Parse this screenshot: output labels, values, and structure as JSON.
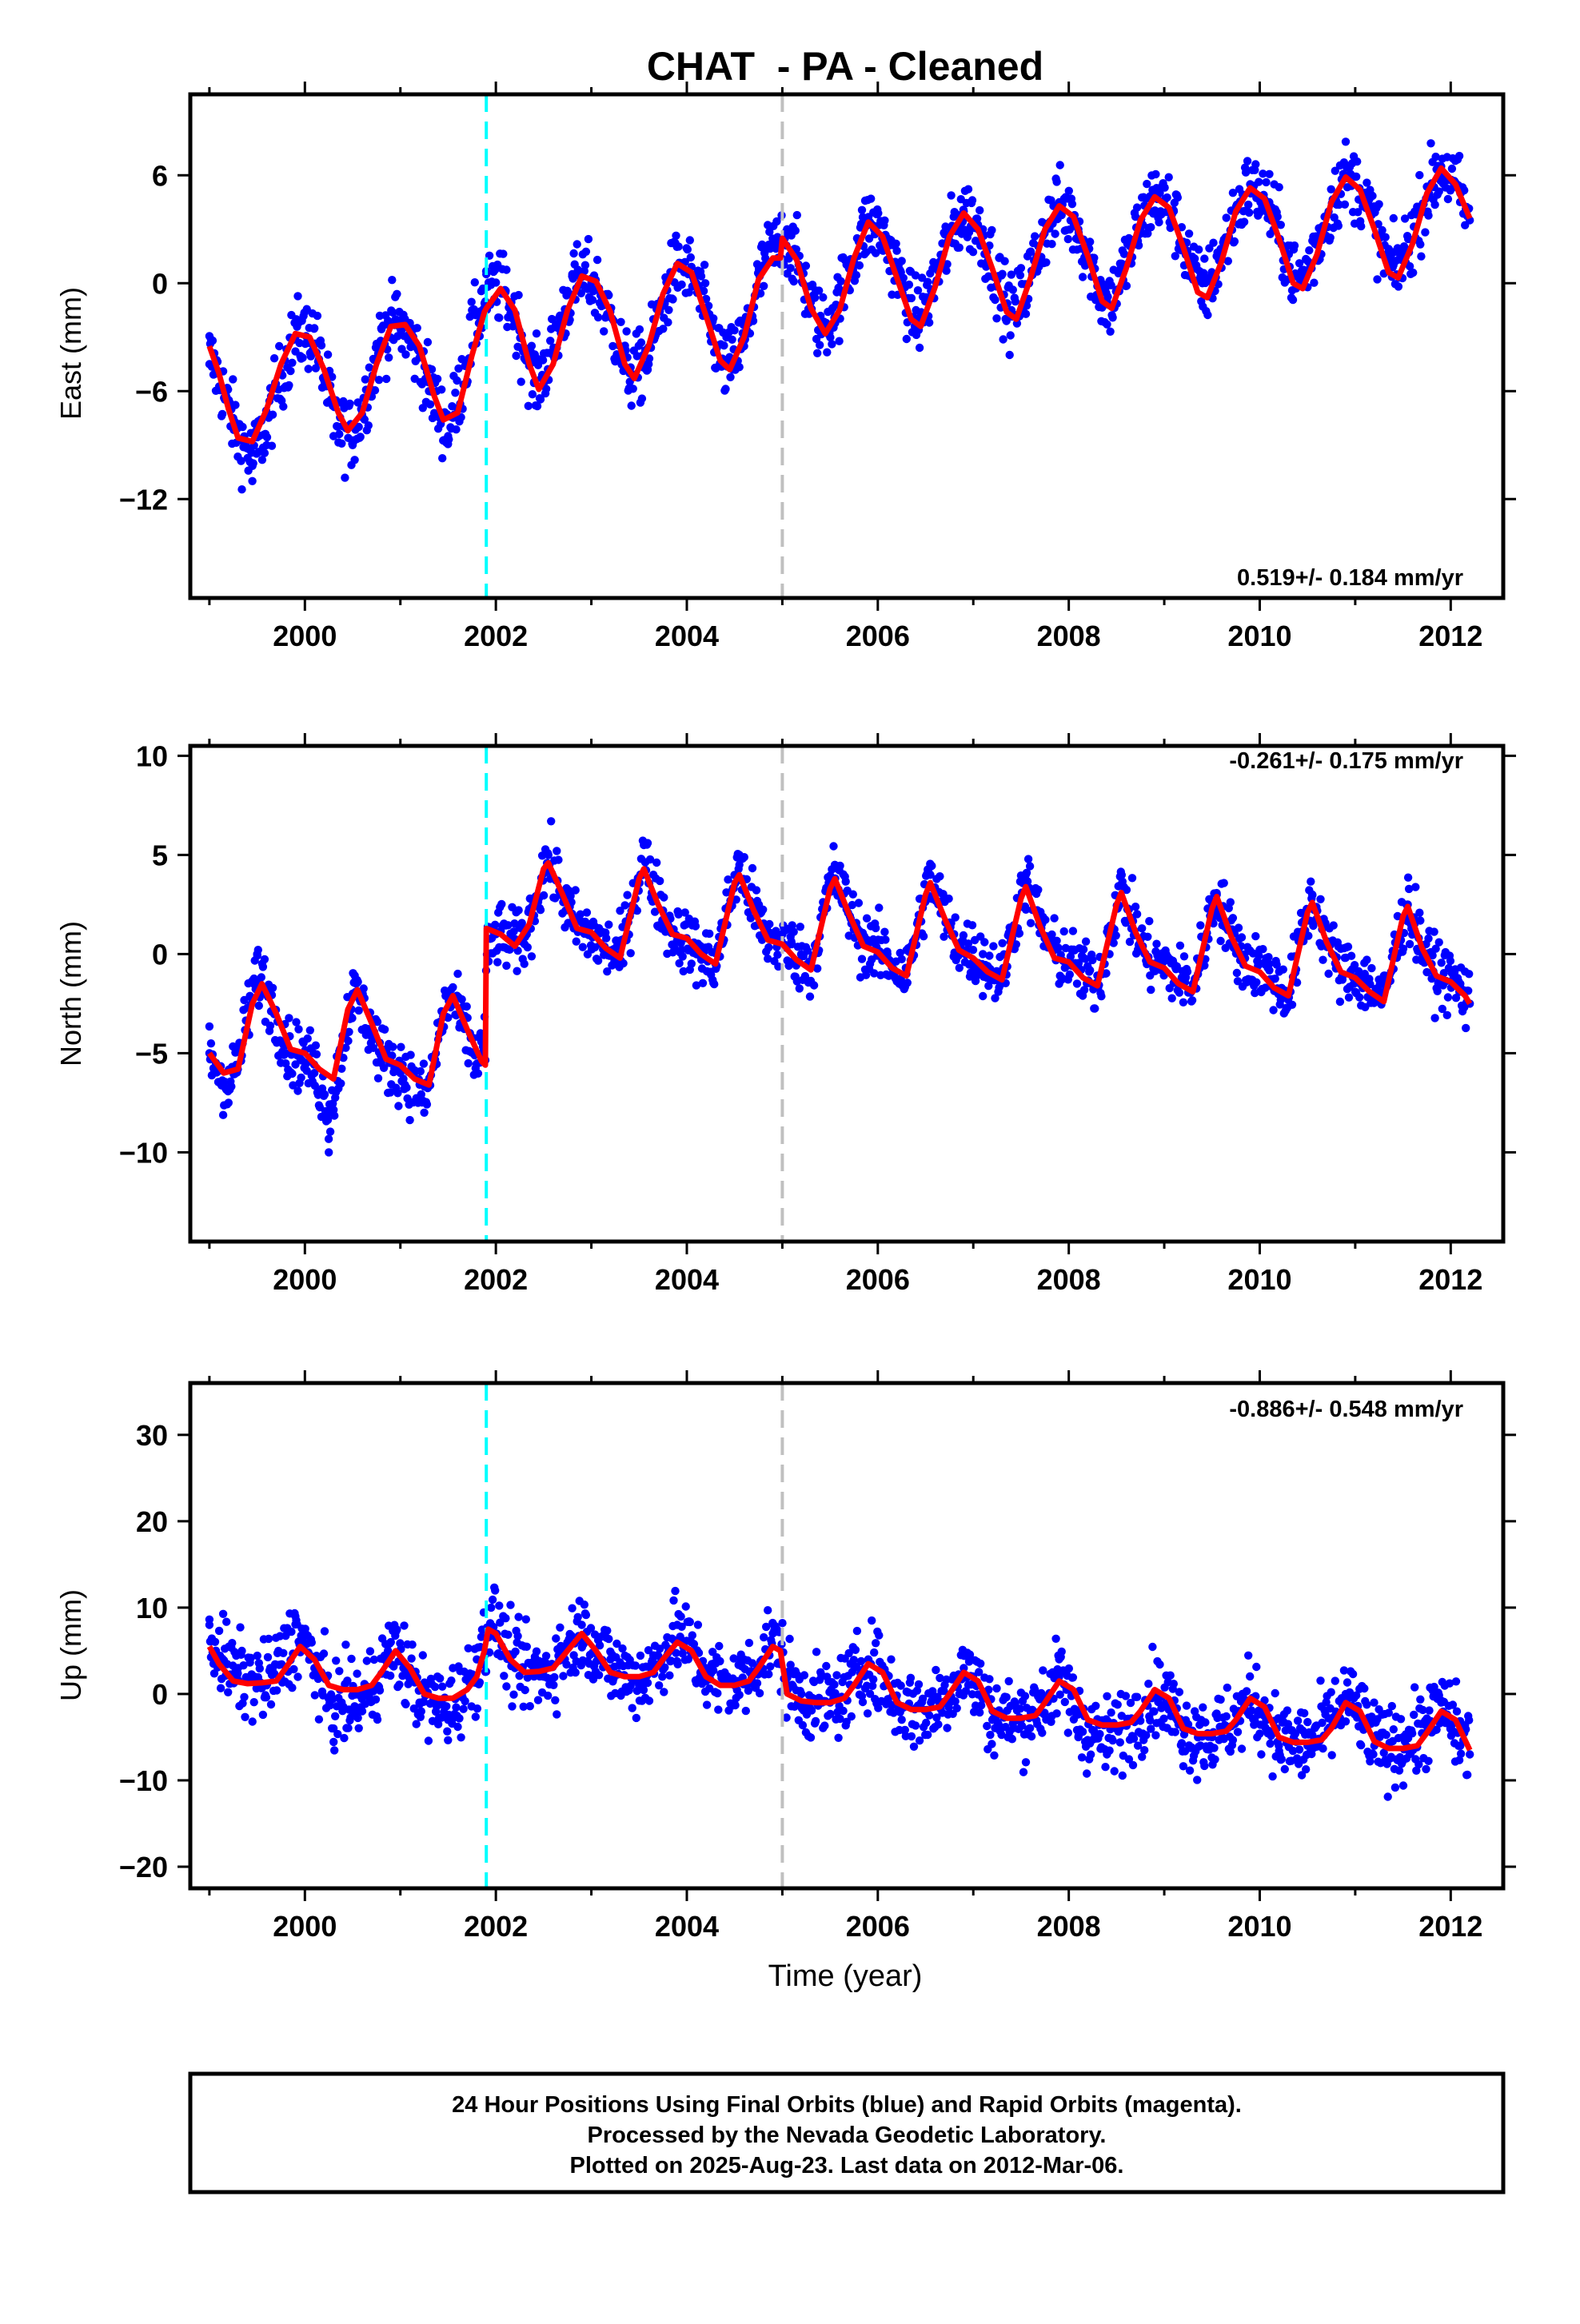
{
  "page": {
    "title": "CHAT  - PA - Cleaned",
    "xaxis_label": "Time (year)",
    "footer_lines": [
      "24 Hour Positions Using Final Orbits (blue) and Rapid Orbits (magenta).",
      "Processed by the Nevada Geodetic Laboratory.",
      "Plotted on 2025-Aug-23. Last data on 2012-Mar-06."
    ]
  },
  "colors": {
    "points": "#0000ff",
    "model": "#ff0000",
    "equipment_change": "#00ffff",
    "reference_line": "#c0c0c0",
    "frame": "#000000"
  },
  "chart_data": [
    {
      "type": "scatter",
      "component": "East",
      "ylabel": "East (mm)",
      "rate_text": "0.519+/- 0.184 mm/yr",
      "rate_corner": "bottom-right",
      "x_range": [
        1998.8,
        2012.55
      ],
      "ylim": [
        -17.5,
        10.5
      ],
      "xticks": [
        2000,
        2002,
        2004,
        2006,
        2008,
        2010,
        2012
      ],
      "yticks": [
        6,
        0,
        -6,
        -12
      ],
      "vertical_lines": [
        {
          "x": 2001.9,
          "kind": "equipment_change"
        },
        {
          "x": 2005.0,
          "kind": "reference"
        }
      ],
      "series": [
        {
          "role": "points",
          "x": [
            1999.0,
            1999.25,
            1999.45,
            1999.6,
            1999.9,
            2000.1,
            2000.3,
            2000.5,
            2000.8,
            2000.95,
            2001.3,
            2001.5,
            2001.75,
            2001.9,
            2002.1,
            2002.4,
            2002.8,
            2003.0,
            2003.4,
            2003.6,
            2003.9,
            2004.1,
            2004.4,
            2004.6,
            2004.85,
            2005.05,
            2005.4,
            2005.9,
            2006.1,
            2006.4,
            2006.9,
            2007.1,
            2007.4,
            2007.9,
            2008.1,
            2008.4,
            2008.9,
            2009.1,
            2009.4,
            2009.9,
            2010.1,
            2010.4,
            2010.9,
            2011.1,
            2011.4,
            2011.9,
            2012.1,
            2012.2
          ],
          "y": [
            -4.5,
            -7.5,
            -11.0,
            -9.0,
            -3.0,
            -2.5,
            -8.5,
            -9.0,
            -2.5,
            -2.0,
            -6.0,
            -8.5,
            -1.5,
            0.5,
            -0.5,
            -5.5,
            0.5,
            0.0,
            -5.0,
            -4.5,
            1.0,
            0.0,
            -4.5,
            -3.5,
            2.0,
            3.0,
            -2.5,
            3.5,
            2.5,
            -1.5,
            4.0,
            3.0,
            -1.5,
            4.5,
            3.0,
            -1.0,
            5.0,
            4.0,
            0.0,
            5.5,
            4.5,
            0.5,
            6.0,
            5.0,
            1.0,
            6.5,
            5.0,
            3.5
          ]
        },
        {
          "role": "model",
          "x": [
            1999.0,
            1999.1,
            1999.2,
            1999.3,
            1999.45,
            1999.6,
            1999.75,
            1999.9,
            2000.05,
            2000.2,
            2000.35,
            2000.45,
            2000.6,
            2000.75,
            2000.9,
            2001.05,
            2001.2,
            2001.35,
            2001.45,
            2001.6,
            2001.75,
            2001.88,
            2001.9,
            2002.05,
            2002.2,
            2002.35,
            2002.45,
            2002.6,
            2002.75,
            2002.9,
            2003.05,
            2003.2,
            2003.35,
            2003.45,
            2003.6,
            2003.75,
            2003.9,
            2004.05,
            2004.2,
            2004.35,
            2004.45,
            2004.6,
            2004.75,
            2004.9,
            2004.98,
            2005.0,
            2005.15,
            2005.3,
            2005.45,
            2005.6,
            2005.75,
            2005.9,
            2006.05,
            2006.2,
            2006.35,
            2006.45,
            2006.6,
            2006.75,
            2006.9,
            2007.05,
            2007.2,
            2007.35,
            2007.45,
            2007.6,
            2007.75,
            2007.9,
            2008.05,
            2008.2,
            2008.35,
            2008.45,
            2008.6,
            2008.75,
            2008.9,
            2009.05,
            2009.2,
            2009.35,
            2009.45,
            2009.6,
            2009.75,
            2009.9,
            2010.05,
            2010.2,
            2010.35,
            2010.45,
            2010.6,
            2010.75,
            2010.9,
            2011.05,
            2011.2,
            2011.35,
            2011.45,
            2011.6,
            2011.75,
            2011.9,
            2012.05,
            2012.2
          ],
          "y": [
            -3.5,
            -5.0,
            -7.0,
            -8.6,
            -8.8,
            -7.0,
            -4.5,
            -2.8,
            -3.0,
            -4.8,
            -7.2,
            -8.2,
            -7.2,
            -4.5,
            -2.4,
            -2.3,
            -3.5,
            -6.2,
            -7.6,
            -7.2,
            -4.0,
            -1.6,
            -1.4,
            -0.3,
            -1.5,
            -4.5,
            -5.9,
            -4.5,
            -1.5,
            0.4,
            0.1,
            -1.6,
            -4.5,
            -5.3,
            -3.5,
            -0.6,
            1.1,
            0.6,
            -1.8,
            -4.3,
            -4.8,
            -3.0,
            0.2,
            1.4,
            1.4,
            2.5,
            1.3,
            -1.4,
            -2.8,
            -1.5,
            1.4,
            3.4,
            2.6,
            0.3,
            -2.0,
            -2.4,
            -0.2,
            2.6,
            3.9,
            3.0,
            0.8,
            -1.6,
            -2.0,
            0.3,
            3.0,
            4.3,
            3.7,
            1.5,
            -1.0,
            -1.4,
            0.8,
            3.5,
            4.8,
            4.2,
            2.0,
            -0.5,
            -0.8,
            1.2,
            4.0,
            5.3,
            4.7,
            2.5,
            0.0,
            -0.3,
            1.6,
            4.5,
            5.9,
            5.2,
            3.0,
            0.6,
            0.3,
            2.2,
            5.0,
            6.4,
            5.5,
            3.6
          ]
        }
      ]
    },
    {
      "type": "scatter",
      "component": "North",
      "ylabel": "North (mm)",
      "rate_text": "-0.261+/- 0.175 mm/yr",
      "rate_corner": "top-right",
      "x_range": [
        1998.8,
        2012.55
      ],
      "ylim": [
        -14.5,
        10.5
      ],
      "xticks": [
        2000,
        2002,
        2004,
        2006,
        2008,
        2010,
        2012
      ],
      "yticks": [
        10,
        5,
        0,
        -5,
        -10
      ],
      "vertical_lines": [
        {
          "x": 2001.9,
          "kind": "equipment_change"
        },
        {
          "x": 2005.0,
          "kind": "reference"
        }
      ],
      "series": [
        {
          "role": "points",
          "x": [
            1999.0,
            1999.2,
            1999.5,
            1999.8,
            2000.1,
            2000.25,
            2000.5,
            2000.8,
            2001.0,
            2001.25,
            2001.5,
            2001.8,
            2002.0,
            2002.3,
            2002.55,
            2002.8,
            2003.1,
            2003.3,
            2003.55,
            2003.8,
            2004.1,
            2004.3,
            2004.55,
            2004.8,
            2005.1,
            2005.3,
            2005.55,
            2005.8,
            2006.1,
            2006.3,
            2006.55,
            2006.8,
            2007.1,
            2007.3,
            2007.55,
            2007.8,
            2008.1,
            2008.3,
            2008.55,
            2008.8,
            2009.1,
            2009.3,
            2009.55,
            2009.8,
            2010.1,
            2010.3,
            2010.55,
            2010.8,
            2011.1,
            2011.3,
            2011.55,
            2011.8,
            2012.1,
            2012.2
          ],
          "y": [
            -5.0,
            -7.5,
            0.0,
            -5.0,
            -6.0,
            -10.0,
            -2.0,
            -5.5,
            -6.0,
            -8.0,
            -2.0,
            -6.0,
            1.0,
            0.5,
            5.0,
            1.5,
            0.5,
            0.0,
            5.5,
            1.5,
            0.0,
            -0.5,
            5.0,
            1.0,
            0.5,
            -0.5,
            4.5,
            1.0,
            0.0,
            -1.0,
            4.0,
            1.0,
            0.0,
            -1.0,
            4.0,
            0.5,
            -0.5,
            -1.5,
            3.5,
            0.0,
            -0.5,
            -1.5,
            3.0,
            0.0,
            -0.5,
            -2.0,
            3.0,
            -0.5,
            -1.0,
            -2.0,
            2.5,
            -0.5,
            -1.5,
            -2.5
          ]
        },
        {
          "role": "model",
          "x": [
            1999.0,
            1999.15,
            1999.3,
            1999.45,
            1999.55,
            1999.7,
            1999.85,
            2000.0,
            2000.15,
            2000.3,
            2000.45,
            2000.55,
            2000.7,
            2000.85,
            2001.0,
            2001.15,
            2001.3,
            2001.45,
            2001.55,
            2001.7,
            2001.85,
            2001.89,
            2001.9,
            2002.05,
            2002.2,
            2002.35,
            2002.5,
            2002.55,
            2002.7,
            2002.85,
            2003.0,
            2003.15,
            2003.3,
            2003.5,
            2003.55,
            2003.7,
            2003.85,
            2004.0,
            2004.15,
            2004.3,
            2004.5,
            2004.55,
            2004.7,
            2004.85,
            2005.0,
            2005.15,
            2005.3,
            2005.5,
            2005.55,
            2005.7,
            2005.85,
            2006.0,
            2006.15,
            2006.3,
            2006.5,
            2006.55,
            2006.7,
            2006.85,
            2007.0,
            2007.15,
            2007.3,
            2007.5,
            2007.55,
            2007.7,
            2007.85,
            2008.0,
            2008.15,
            2008.3,
            2008.5,
            2008.55,
            2008.7,
            2008.85,
            2009.0,
            2009.15,
            2009.3,
            2009.5,
            2009.55,
            2009.7,
            2009.85,
            2010.0,
            2010.15,
            2010.3,
            2010.5,
            2010.55,
            2010.7,
            2010.85,
            2011.0,
            2011.15,
            2011.3,
            2011.5,
            2011.55,
            2011.7,
            2011.85,
            2012.0,
            2012.15,
            2012.2
          ],
          "y": [
            -5.0,
            -6.0,
            -5.8,
            -2.5,
            -1.5,
            -3.0,
            -4.8,
            -5.0,
            -5.8,
            -6.3,
            -2.8,
            -1.8,
            -3.5,
            -5.3,
            -5.6,
            -6.3,
            -6.6,
            -3.0,
            -2.1,
            -3.8,
            -5.4,
            -5.6,
            1.3,
            1.0,
            0.4,
            1.5,
            4.3,
            4.6,
            3.0,
            1.3,
            1.1,
            0.3,
            -0.2,
            3.8,
            4.3,
            2.5,
            1.0,
            0.8,
            0.0,
            -0.5,
            3.6,
            4.0,
            2.2,
            0.7,
            0.5,
            -0.3,
            -0.8,
            3.3,
            3.8,
            2.0,
            0.4,
            0.1,
            -0.7,
            -1.1,
            3.0,
            3.6,
            1.8,
            0.2,
            -0.2,
            -0.9,
            -1.3,
            2.8,
            3.4,
            1.4,
            -0.2,
            -0.4,
            -1.2,
            -1.6,
            2.5,
            3.1,
            1.1,
            -0.4,
            -0.7,
            -1.5,
            -1.9,
            2.3,
            2.9,
            0.9,
            -0.6,
            -0.9,
            -1.7,
            -2.1,
            2.1,
            2.6,
            0.6,
            -0.9,
            -1.2,
            -1.9,
            -2.4,
            1.9,
            2.4,
            0.3,
            -1.1,
            -1.4,
            -2.1,
            -2.5
          ]
        }
      ]
    },
    {
      "type": "scatter",
      "component": "Up",
      "ylabel": "Up (mm)",
      "rate_text": "-0.886+/- 0.548 mm/yr",
      "rate_corner": "top-right",
      "x_range": [
        1998.8,
        2012.55
      ],
      "ylim": [
        -22.5,
        36.0
      ],
      "xticks": [
        2000,
        2002,
        2004,
        2006,
        2008,
        2010,
        2012
      ],
      "yticks": [
        30,
        20,
        10,
        0,
        -10,
        -20
      ],
      "vertical_lines": [
        {
          "x": 2001.9,
          "kind": "equipment_change"
        },
        {
          "x": 2005.0,
          "kind": "reference"
        }
      ],
      "series": [
        {
          "role": "points",
          "x": [
            1999.0,
            1999.3,
            1999.6,
            1999.9,
            2000.1,
            2000.3,
            2000.6,
            2000.9,
            2001.2,
            2001.5,
            2001.8,
            2001.95,
            2002.2,
            2002.5,
            2002.9,
            2003.2,
            2003.5,
            2003.9,
            2004.2,
            2004.5,
            2004.9,
            2005.2,
            2005.5,
            2005.9,
            2006.2,
            2006.5,
            2006.9,
            2007.2,
            2007.5,
            2007.9,
            2008.1,
            2008.4,
            2008.7,
            2008.9,
            2009.2,
            2009.5,
            2009.9,
            2010.2,
            2010.5,
            2010.9,
            2011.2,
            2011.5,
            2011.9,
            2012.1,
            2012.2
          ],
          "y": [
            8.0,
            3.0,
            1.0,
            9.0,
            3.0,
            -4.0,
            -2.0,
            6.0,
            -1.0,
            -3.0,
            4.0,
            10.0,
            3.0,
            2.0,
            8.0,
            4.0,
            1.0,
            8.0,
            3.0,
            1.0,
            7.0,
            0.0,
            -1.0,
            4.0,
            -1.0,
            -2.0,
            3.0,
            -3.0,
            -3.0,
            2.0,
            -5.0,
            -7.0,
            -3.0,
            0.0,
            -4.0,
            -5.0,
            -1.0,
            -6.0,
            -6.0,
            0.0,
            -6.0,
            -5.0,
            -1.0,
            -6.0,
            -7.0
          ]
        },
        {
          "role": "model",
          "x": [
            1999.0,
            1999.1,
            1999.25,
            1999.4,
            1999.55,
            1999.7,
            1999.8,
            1999.95,
            2000.1,
            2000.25,
            2000.4,
            2000.55,
            2000.7,
            2000.8,
            2000.95,
            2001.1,
            2001.25,
            2001.4,
            2001.55,
            2001.7,
            2001.8,
            2001.88,
            2001.92,
            2002.0,
            2002.15,
            2002.3,
            2002.45,
            2002.6,
            2002.75,
            2002.9,
            2003.05,
            2003.2,
            2003.35,
            2003.5,
            2003.65,
            2003.75,
            2003.9,
            2004.05,
            2004.2,
            2004.35,
            2004.5,
            2004.65,
            2004.75,
            2004.9,
            2004.98,
            2005.05,
            2005.2,
            2005.35,
            2005.5,
            2005.65,
            2005.75,
            2005.9,
            2006.05,
            2006.2,
            2006.35,
            2006.5,
            2006.65,
            2006.75,
            2006.9,
            2007.05,
            2007.2,
            2007.35,
            2007.5,
            2007.65,
            2007.75,
            2007.9,
            2008.05,
            2008.2,
            2008.35,
            2008.5,
            2008.65,
            2008.75,
            2008.9,
            2009.05,
            2009.2,
            2009.35,
            2009.5,
            2009.65,
            2009.75,
            2009.9,
            2010.05,
            2010.2,
            2010.35,
            2010.5,
            2010.65,
            2010.75,
            2010.9,
            2011.05,
            2011.2,
            2011.35,
            2011.5,
            2011.65,
            2011.75,
            2011.9,
            2012.05,
            2012.2
          ],
          "y": [
            5.5,
            3.5,
            1.5,
            1.2,
            1.3,
            1.5,
            3.0,
            5.5,
            4.0,
            1.0,
            0.5,
            0.5,
            1.0,
            2.5,
            5.0,
            3.0,
            0.0,
            -0.5,
            -0.5,
            0.5,
            2.0,
            5.0,
            7.5,
            7.0,
            4.0,
            2.5,
            2.6,
            3.0,
            5.0,
            7.0,
            5.0,
            2.5,
            2.0,
            2.0,
            2.5,
            4.0,
            6.0,
            5.0,
            2.0,
            1.0,
            1.0,
            1.5,
            3.0,
            5.5,
            5.0,
            0.0,
            -0.8,
            -1.0,
            -1.0,
            -0.5,
            1.0,
            3.5,
            2.5,
            -1.0,
            -1.8,
            -1.8,
            -1.5,
            0.0,
            2.5,
            1.5,
            -2.0,
            -2.8,
            -2.8,
            -2.5,
            -1.0,
            1.5,
            0.5,
            -3.0,
            -3.6,
            -3.6,
            -3.3,
            -2.0,
            0.5,
            -0.5,
            -4.0,
            -4.6,
            -4.6,
            -4.3,
            -3.0,
            -0.5,
            -1.5,
            -5.0,
            -5.6,
            -5.6,
            -5.3,
            -4.0,
            -1.0,
            -2.0,
            -5.5,
            -6.3,
            -6.3,
            -6.0,
            -4.5,
            -2.0,
            -3.0,
            -6.5
          ]
        }
      ]
    }
  ]
}
